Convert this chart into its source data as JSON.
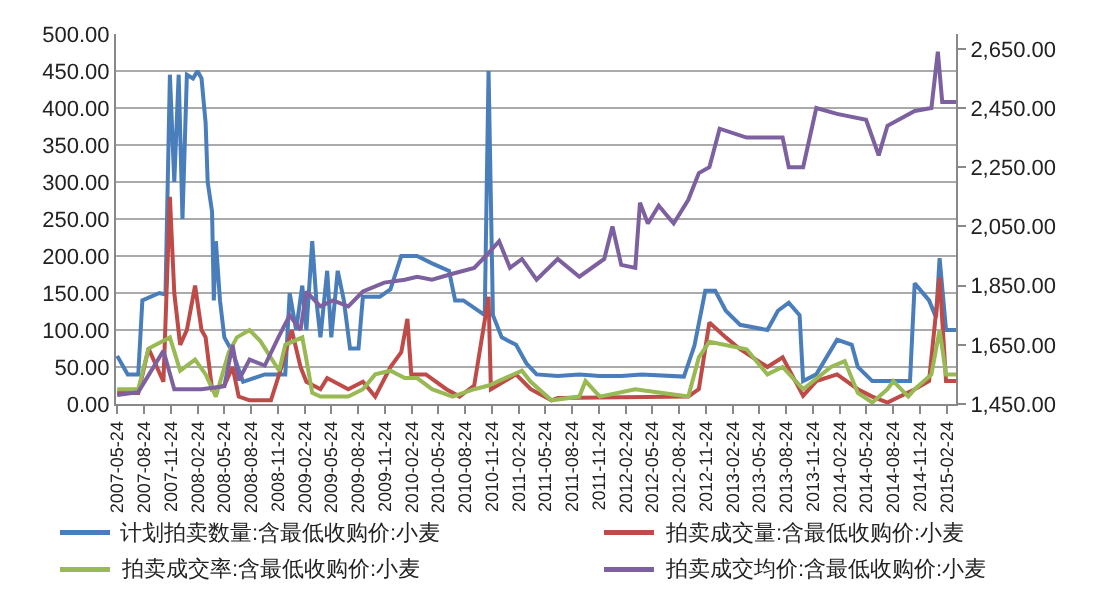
{
  "chart_data": {
    "type": "line",
    "xlim": [
      "2007-05-20",
      "2015-03-27"
    ],
    "xticks": [
      "2007-05-24",
      "2007-08-24",
      "2007-11-24",
      "2008-02-24",
      "2008-05-24",
      "2008-08-24",
      "2008-11-24",
      "2009-02-24",
      "2009-05-24",
      "2009-08-24",
      "2009-11-24",
      "2010-02-24",
      "2010-05-24",
      "2010-08-24",
      "2010-11-24",
      "2011-02-24",
      "2011-05-24",
      "2011-08-24",
      "2011-11-24",
      "2012-02-24",
      "2012-05-24",
      "2012-08-24",
      "2012-11-24",
      "2013-02-24",
      "2013-05-24",
      "2013-08-24",
      "2013-11-24",
      "2014-02-24",
      "2014-05-24",
      "2014-08-24",
      "2014-11-24",
      "2015-02-24"
    ],
    "ylim": [
      0,
      500
    ],
    "yticks": [
      {
        "value": 0,
        "label": "0.00"
      },
      {
        "value": 50,
        "label": "50.00"
      },
      {
        "value": 100,
        "label": "100.00"
      },
      {
        "value": 150,
        "label": "150.00"
      },
      {
        "value": 200,
        "label": "200.00"
      },
      {
        "value": 250,
        "label": "250.00"
      },
      {
        "value": 300,
        "label": "300.00"
      },
      {
        "value": 350,
        "label": "350.00"
      },
      {
        "value": 400,
        "label": "400.00"
      },
      {
        "value": 450,
        "label": "450.00"
      },
      {
        "value": 500,
        "label": "500.00"
      }
    ],
    "y2lim": [
      1450,
      2700
    ],
    "y2ticks": [
      {
        "value": 1450,
        "label": "1,450.00"
      },
      {
        "value": 1650,
        "label": "1,650.00"
      },
      {
        "value": 1850,
        "label": "1,850.00"
      },
      {
        "value": 2050,
        "label": "2,050.00"
      },
      {
        "value": 2250,
        "label": "2,250.00"
      },
      {
        "value": 2450,
        "label": "2,450.00"
      },
      {
        "value": 2650,
        "label": "2,650.00"
      }
    ],
    "grid": "y",
    "legend": "bottom",
    "marker": "none",
    "line_style": "solid",
    "series": [
      {
        "name": "计划拍卖数量:含最低收购价:小麦",
        "color": "#4a7ebb",
        "x": [
          "2007-05-24",
          "2007-06-29",
          "2007-08-04",
          "2007-08-18",
          "2007-10-15",
          "2007-11-05",
          "2007-11-20",
          "2007-12-05",
          "2007-12-20",
          "2008-01-02",
          "2008-01-17",
          "2008-02-07",
          "2008-02-22",
          "2008-03-07",
          "2008-03-21",
          "2008-03-28",
          "2008-04-12",
          "2008-04-18",
          "2008-04-25",
          "2008-05-09",
          "2008-05-24",
          "2008-06-21",
          "2008-07-27",
          "2008-10-09",
          "2008-12-18",
          "2009-01-02",
          "2009-01-24",
          "2009-02-14",
          "2009-02-28",
          "2009-03-20",
          "2009-04-03",
          "2009-04-17",
          "2009-05-10",
          "2009-05-24",
          "2009-06-15",
          "2009-07-06",
          "2009-07-27",
          "2009-08-25",
          "2009-09-09",
          "2009-11-06",
          "2009-12-12",
          "2010-01-18",
          "2010-03-13",
          "2010-05-03",
          "2010-06-30",
          "2010-07-21",
          "2010-08-18",
          "2010-10-30",
          "2010-11-12",
          "2010-11-27",
          "2010-12-27",
          "2011-02-14",
          "2011-03-21",
          "2011-04-25",
          "2011-07-06",
          "2011-09-18",
          "2011-11-27",
          "2012-02-08",
          "2012-04-18",
          "2012-09-09",
          "2012-10-15",
          "2012-11-21",
          "2012-12-25",
          "2013-01-30",
          "2013-03-20",
          "2013-06-21",
          "2013-07-27",
          "2013-09-02",
          "2013-10-09",
          "2013-10-21",
          "2013-12-05",
          "2014-02-14",
          "2014-04-05",
          "2014-04-26",
          "2014-06-14",
          "2014-08-25",
          "2014-10-21",
          "2014-11-06",
          "2014-12-25",
          "2015-01-18",
          "2015-01-30",
          "2015-02-21",
          "2015-03-27"
        ],
        "values": [
          65,
          40,
          40,
          140,
          150,
          148,
          445,
          300,
          445,
          250,
          445,
          440,
          450,
          440,
          380,
          300,
          260,
          140,
          220,
          140,
          90,
          70,
          30,
          40,
          40,
          150,
          100,
          160,
          100,
          220,
          140,
          90,
          180,
          90,
          180,
          140,
          75,
          75,
          145,
          145,
          155,
          200,
          200,
          190,
          180,
          140,
          140,
          120,
          450,
          120,
          90,
          80,
          55,
          40,
          38,
          40,
          38,
          38,
          40,
          37,
          79,
          153,
          153,
          126,
          107,
          100,
          126,
          137,
          120,
          31,
          40,
          87,
          80,
          50,
          31,
          31,
          31,
          163,
          140,
          117,
          197,
          100,
          100
        ]
      },
      {
        "name": "拍卖成交量:含最低收购价:小麦",
        "color": "#be4b48",
        "x": [
          "2007-05-24",
          "2007-08-04",
          "2007-09-08",
          "2007-10-29",
          "2007-11-20",
          "2007-12-05",
          "2007-12-25",
          "2008-01-17",
          "2008-02-14",
          "2008-03-07",
          "2008-03-21",
          "2008-04-12",
          "2008-05-24",
          "2008-06-21",
          "2008-07-12",
          "2008-08-18",
          "2008-10-30",
          "2008-12-05",
          "2009-01-09",
          "2009-02-08",
          "2009-02-28",
          "2009-04-17",
          "2009-05-10",
          "2009-07-21",
          "2009-09-09",
          "2009-10-21",
          "2009-12-12",
          "2010-01-18",
          "2010-02-08",
          "2010-02-21",
          "2010-04-12",
          "2010-06-21",
          "2010-08-05",
          "2010-09-24",
          "2010-11-12",
          "2010-11-20",
          "2011-02-14",
          "2011-04-05",
          "2011-06-15",
          "2011-07-06",
          "2012-09-24",
          "2012-10-30",
          "2012-12-05",
          "2013-01-30",
          "2013-03-20",
          "2013-06-21",
          "2013-08-12",
          "2013-10-21",
          "2013-12-05",
          "2014-02-14",
          "2014-04-26",
          "2014-06-14",
          "2014-08-05",
          "2014-11-06",
          "2014-12-25",
          "2015-01-30",
          "2015-02-21",
          "2015-03-27"
        ],
        "values": [
          15,
          15,
          75,
          30,
          280,
          150,
          80,
          100,
          160,
          100,
          90,
          20,
          25,
          50,
          10,
          5,
          5,
          50,
          100,
          50,
          30,
          20,
          35,
          20,
          30,
          10,
          50,
          70,
          115,
          40,
          40,
          20,
          10,
          25,
          145,
          20,
          40,
          20,
          5,
          8,
          10,
          20,
          110,
          90,
          74,
          50,
          63,
          11,
          31,
          40,
          20,
          10,
          2,
          20,
          31,
          171,
          31,
          31
        ]
      },
      {
        "name": "拍卖成交率:含最低收购价:小麦",
        "color": "#98b954",
        "x": [
          "2007-05-24",
          "2007-08-04",
          "2007-09-08",
          "2007-11-20",
          "2007-12-25",
          "2008-02-14",
          "2008-03-21",
          "2008-04-25",
          "2008-06-08",
          "2008-07-06",
          "2008-08-18",
          "2008-09-24",
          "2008-11-27",
          "2008-12-18",
          "2009-02-14",
          "2009-02-28",
          "2009-03-20",
          "2009-04-17",
          "2009-07-21",
          "2009-09-09",
          "2009-10-21",
          "2009-12-12",
          "2010-01-30",
          "2010-03-13",
          "2010-05-03",
          "2010-07-12",
          "2010-09-24",
          "2010-11-12",
          "2011-03-06",
          "2011-04-05",
          "2011-06-15",
          "2011-09-18",
          "2011-10-09",
          "2011-11-27",
          "2012-03-27",
          "2012-09-24",
          "2012-10-30",
          "2012-12-05",
          "2013-04-11",
          "2013-06-21",
          "2013-08-12",
          "2013-10-21",
          "2014-01-24",
          "2014-03-12",
          "2014-04-26",
          "2014-06-14",
          "2014-08-05",
          "2014-08-25",
          "2014-10-15",
          "2014-11-06",
          "2015-01-02",
          "2015-01-30",
          "2015-02-21",
          "2015-03-27"
        ],
        "values": [
          20,
          20,
          75,
          90,
          45,
          60,
          40,
          10,
          70,
          90,
          100,
          85,
          45,
          80,
          90,
          60,
          15,
          10,
          10,
          20,
          40,
          45,
          35,
          35,
          20,
          10,
          20,
          25,
          45,
          30,
          5,
          10,
          31,
          10,
          20,
          10,
          63,
          84,
          74,
          40,
          50,
          20,
          50,
          58,
          15,
          2,
          20,
          31,
          10,
          20,
          40,
          100,
          40,
          40
        ]
      },
      {
        "name": "拍卖成交均价:含最低收购价:小麦",
        "color": "#7d60a0",
        "axis": "y2",
        "x": [
          "2007-05-24",
          "2007-08-04",
          "2007-10-29",
          "2007-12-05",
          "2008-03-07",
          "2008-05-24",
          "2008-06-21",
          "2008-07-12",
          "2008-08-18",
          "2008-10-09",
          "2008-11-27",
          "2009-01-02",
          "2009-02-08",
          "2009-02-28",
          "2009-04-17",
          "2009-05-30",
          "2009-07-21",
          "2009-09-09",
          "2009-11-21",
          "2010-01-30",
          "2010-03-13",
          "2010-05-03",
          "2010-07-12",
          "2010-09-24",
          "2010-11-12",
          "2010-12-18",
          "2011-01-24",
          "2011-03-06",
          "2011-04-25",
          "2011-07-06",
          "2011-09-18",
          "2011-12-12",
          "2012-01-09",
          "2012-02-08",
          "2012-03-27",
          "2012-04-12",
          "2012-05-09",
          "2012-06-15",
          "2012-08-05",
          "2012-09-24",
          "2012-10-30",
          "2012-12-05",
          "2013-01-09",
          "2013-04-11",
          "2013-08-12",
          "2013-09-02",
          "2013-10-21",
          "2013-12-05",
          "2014-02-14",
          "2014-05-24",
          "2014-07-06",
          "2014-08-05",
          "2014-11-06",
          "2015-01-02",
          "2015-01-24",
          "2015-02-08",
          "2015-03-27"
        ],
        "values": [
          1480,
          1490,
          1630,
          1500,
          1500,
          1510,
          1650,
          1530,
          1600,
          1580,
          1680,
          1750,
          1700,
          1830,
          1780,
          1800,
          1780,
          1830,
          1860,
          1870,
          1880,
          1870,
          1890,
          1910,
          1960,
          2000,
          1910,
          1940,
          1870,
          1940,
          1880,
          1940,
          2050,
          1920,
          1910,
          2130,
          2060,
          2120,
          2060,
          2140,
          2230,
          2250,
          2380,
          2350,
          2350,
          2250,
          2250,
          2450,
          2430,
          2410,
          2290,
          2390,
          2440,
          2450,
          2640,
          2470,
          2470
        ]
      }
    ]
  }
}
